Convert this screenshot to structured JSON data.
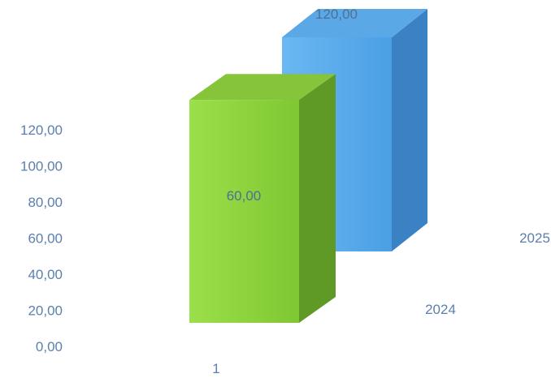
{
  "chart_data": {
    "type": "bar",
    "categories": [
      "1"
    ],
    "series": [
      {
        "name": "2024",
        "values": [
          60
        ],
        "color": "#8fd63a",
        "data_label": "60,00"
      },
      {
        "name": "2025",
        "values": [
          120
        ],
        "color": "#4aa3e6",
        "data_label": "120,00"
      }
    ],
    "yticks": [
      "0,00",
      "20,00",
      "40,00",
      "60,00",
      "80,00",
      "100,00",
      "120,00"
    ],
    "ylim": [
      0,
      120
    ],
    "grid": false,
    "legend": "none",
    "three_d": true
  }
}
